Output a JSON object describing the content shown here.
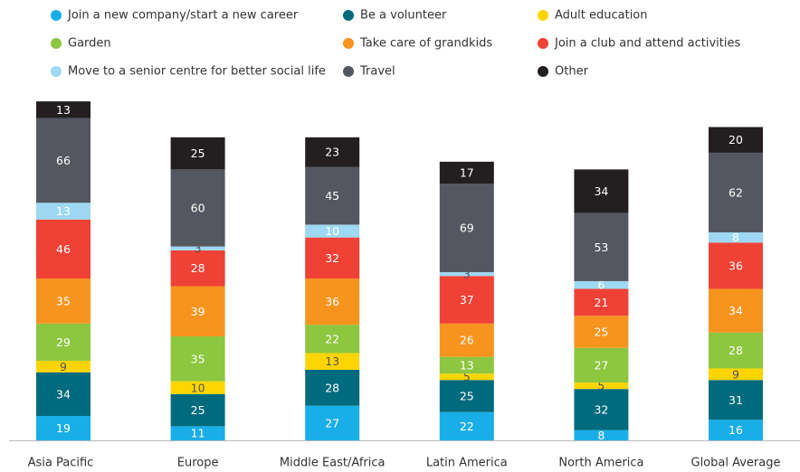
{
  "chart_data": {
    "type": "stacked_bar",
    "categories": [
      "Asia Pacific",
      "Europe",
      "Middle East/Africa",
      "Latin America",
      "North America",
      "Global Average"
    ],
    "series": [
      {
        "name": "Join a new company/start a new career",
        "color": "#1aaee8",
        "values": [
          19,
          11,
          27,
          22,
          8,
          16
        ]
      },
      {
        "name": "Be a volunteer",
        "color": "#006b7d",
        "values": [
          34,
          25,
          28,
          25,
          32,
          31
        ]
      },
      {
        "name": "Adult education",
        "color": "#ffd500",
        "values": [
          9,
          10,
          13,
          5,
          5,
          9
        ]
      },
      {
        "name": "Garden",
        "color": "#8dc63f",
        "values": [
          29,
          35,
          22,
          13,
          27,
          28
        ]
      },
      {
        "name": "Take care of grandkids",
        "color": "#f7941d",
        "values": [
          35,
          39,
          36,
          26,
          25,
          34
        ]
      },
      {
        "name": "Join a club and attend activities",
        "color": "#ef4136",
        "values": [
          46,
          28,
          32,
          37,
          21,
          36
        ]
      },
      {
        "name": "Move to a senior centre for better social life",
        "color": "#9ed8f2",
        "values": [
          13,
          3,
          10,
          3,
          6,
          8
        ]
      },
      {
        "name": "Travel",
        "color": "#545760",
        "values": [
          66,
          60,
          45,
          69,
          53,
          62
        ]
      },
      {
        "name": "Other",
        "color": "#231f20",
        "values": [
          13,
          25,
          23,
          17,
          34,
          20
        ]
      }
    ],
    "legend": "top"
  }
}
